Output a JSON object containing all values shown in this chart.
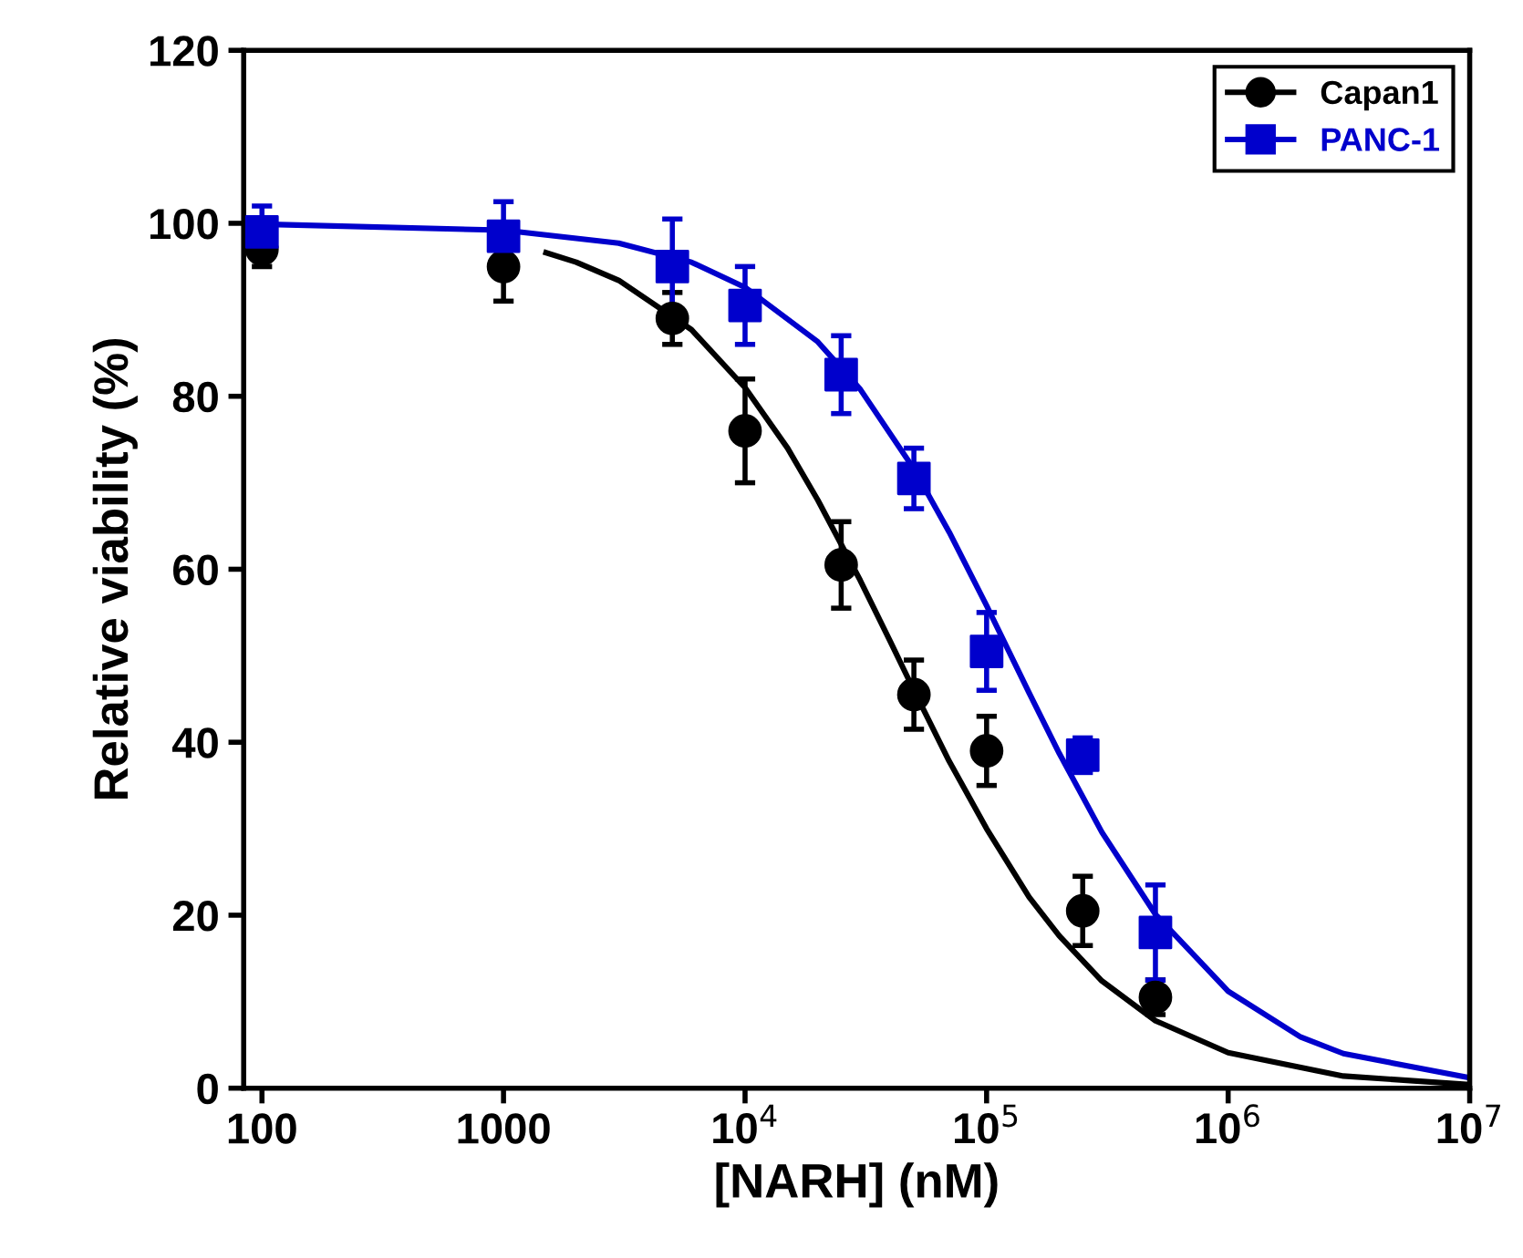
{
  "chart_data": {
    "type": "scatter",
    "xlabel": "[NARH] (nM)",
    "ylabel": "Relative viability (%)",
    "log": "x",
    "xlim": [
      84,
      10000000
    ],
    "ylim": [
      0,
      120
    ],
    "xticks": [
      100,
      1000,
      {
        "value": 10000,
        "label": "10$^{4}$"
      },
      {
        "value": 100000,
        "label": "10$^{5}$"
      },
      {
        "value": 1000000,
        "label": "10$^{6}$"
      },
      {
        "value": 10000000,
        "label": "10$^{7}$"
      }
    ],
    "yticks": [
      0,
      20,
      40,
      60,
      80,
      100,
      120
    ],
    "grid": false,
    "legend": "top right",
    "series": [
      {
        "name": "Capan1",
        "marker": "circle",
        "color": "#000000",
        "x": [
          100,
          1000,
          5000,
          10000,
          25000,
          50000,
          100000,
          250000,
          500000
        ],
        "values": [
          97,
          95,
          89,
          76,
          60.5,
          45.5,
          39,
          20.5,
          10.5
        ],
        "errors": [
          2,
          4,
          3,
          6,
          5,
          4,
          4,
          4,
          2
        ]
      },
      {
        "name": "PANC-1",
        "marker": "square",
        "color": "#0000cc",
        "x": [
          100,
          1000,
          5000,
          10000,
          25000,
          50000,
          100000,
          250000,
          500000
        ],
        "values": [
          99,
          98.5,
          95,
          90.5,
          82.5,
          70.5,
          50.5,
          38.5,
          18
        ],
        "errors": [
          3,
          4,
          5.5,
          4.5,
          4.5,
          3.5,
          4.5,
          2,
          5.5
        ]
      },
      {
        "type": "line",
        "color": "#000000",
        "x": [
          1500,
          2000,
          3000,
          6000,
          10000,
          15000,
          20000,
          30000,
          40000,
          50000,
          70000,
          100000,
          150000,
          200000,
          300000,
          500000,
          1000000,
          3000000,
          10000000
        ],
        "values": [
          96.6,
          95.5,
          93.4,
          87.7,
          81,
          74,
          68,
          58.7,
          51.6,
          46,
          37.8,
          30,
          22.1,
          17.6,
          12.4,
          7.8,
          4.1,
          1.4,
          0.4
        ]
      },
      {
        "type": "line",
        "color": "#0000cc",
        "x": [
          100,
          1000,
          3000,
          6000,
          10000,
          20000,
          30000,
          50000,
          70000,
          100000,
          150000,
          200000,
          300000,
          500000,
          1000000,
          2000000,
          3000000,
          10000000
        ],
        "values": [
          99.9,
          99.2,
          97.7,
          95.5,
          92.6,
          86.3,
          80.8,
          71.6,
          64.3,
          55.8,
          45.7,
          38.7,
          29.6,
          20.1,
          11.2,
          5.9,
          4,
          1.2
        ]
      }
    ]
  }
}
